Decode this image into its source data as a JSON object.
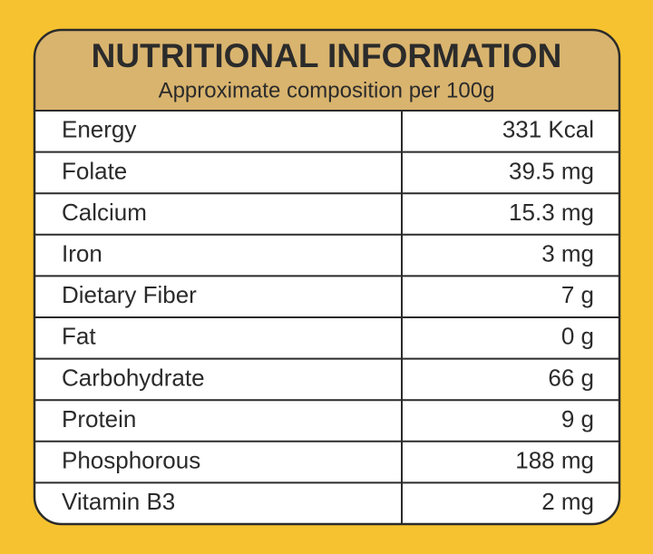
{
  "header": {
    "title": "NUTRITIONAL INFORMATION",
    "subtitle": "Approximate composition per 100g"
  },
  "table": {
    "rows": [
      [
        "Energy",
        "331 Kcal"
      ],
      [
        "Folate",
        "39.5 mg"
      ],
      [
        "Calcium",
        "15.3 mg"
      ],
      [
        "Iron",
        "3 mg"
      ],
      [
        "Dietary Fiber",
        "7 g"
      ],
      [
        "Fat",
        "0 g"
      ],
      [
        "Carbohydrate",
        "66 g"
      ],
      [
        "Protein",
        "9 g"
      ],
      [
        "Phosphorous",
        "188 mg"
      ],
      [
        "Vitamin B3",
        "2 mg"
      ]
    ]
  }
}
